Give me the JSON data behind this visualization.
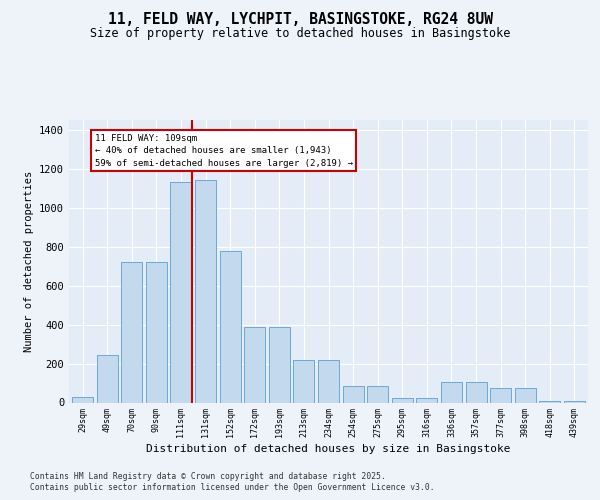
{
  "title_line1": "11, FELD WAY, LYCHPIT, BASINGSTOKE, RG24 8UW",
  "title_line2": "Size of property relative to detached houses in Basingstoke",
  "xlabel": "Distribution of detached houses by size in Basingstoke",
  "ylabel": "Number of detached properties",
  "categories": [
    "29sqm",
    "49sqm",
    "70sqm",
    "90sqm",
    "111sqm",
    "131sqm",
    "152sqm",
    "172sqm",
    "193sqm",
    "213sqm",
    "234sqm",
    "254sqm",
    "275sqm",
    "295sqm",
    "316sqm",
    "336sqm",
    "357sqm",
    "377sqm",
    "398sqm",
    "418sqm",
    "439sqm"
  ],
  "values": [
    30,
    245,
    720,
    720,
    1130,
    1140,
    780,
    390,
    390,
    220,
    220,
    85,
    85,
    25,
    25,
    105,
    105,
    75,
    75,
    10,
    10
  ],
  "bar_color": "#c2d9ee",
  "bar_edge_color": "#6aaad4",
  "vline_color": "#cc0000",
  "vline_pos": 4.45,
  "annotation_lines": [
    "11 FELD WAY: 109sqm",
    "← 40% of detached houses are smaller (1,943)",
    "59% of semi-detached houses are larger (2,819) →"
  ],
  "ylim": [
    0,
    1450
  ],
  "yticks": [
    0,
    200,
    400,
    600,
    800,
    1000,
    1200,
    1400
  ],
  "footer_line1": "Contains HM Land Registry data © Crown copyright and database right 2025.",
  "footer_line2": "Contains public sector information licensed under the Open Government Licence v3.0.",
  "bg_color": "#eef2f9",
  "plot_bg_color": "#e4ecf7"
}
